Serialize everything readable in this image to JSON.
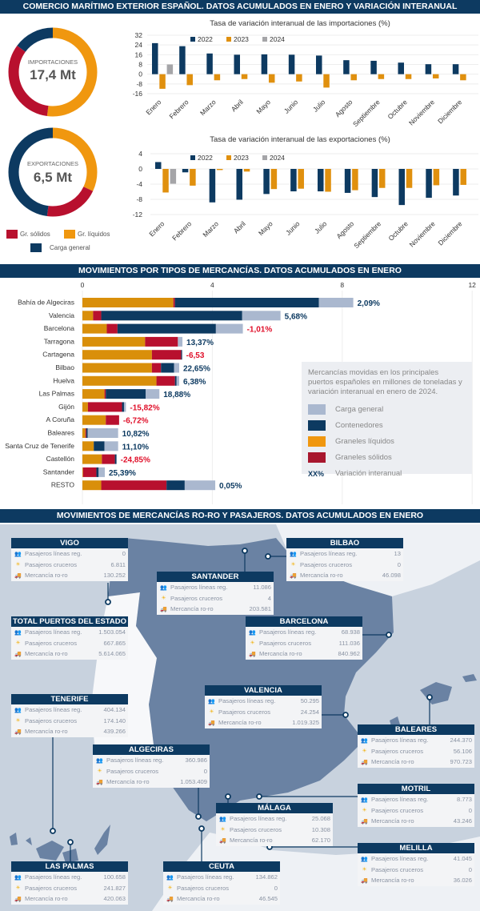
{
  "section1": {
    "title": "COMERCIO MARÍTIMO EXTERIOR ESPAÑOL. DATOS ACUMULADOS EN ENERO Y VARIACIÓN INTERANUAL"
  },
  "donuts": {
    "import": {
      "label": "IMPORTACIONES",
      "value": "17,4 Mt",
      "shares": {
        "liquidos": 52,
        "solidos": 33,
        "general": 15
      }
    },
    "export": {
      "label": "EXPORTACIONES",
      "value": "6,5 Mt",
      "shares": {
        "liquidos": 32,
        "solidos": 20,
        "general": 48
      }
    },
    "legend": {
      "solidos": "Gr. sólidos",
      "liquidos": "Gr. líquidos",
      "general": "Carga general"
    },
    "colors": {
      "solidos": "#b8102e",
      "liquidos": "#f0970f",
      "general": "#0d3a61"
    }
  },
  "chart_data": [
    {
      "type": "bar",
      "title": "Tasa de variación interanual de las importaciones (%)",
      "ylim": [
        -16,
        32
      ],
      "yticks": [
        32,
        24,
        16,
        8,
        0,
        -8,
        -16
      ],
      "grid": true,
      "legend": "top",
      "categories": [
        "Enero",
        "Febrero",
        "Marzo",
        "Abril",
        "Mayo",
        "Junio",
        "Julio",
        "Agosto",
        "Septiembre",
        "Octubre",
        "Noviembre",
        "Diciembre"
      ],
      "series": [
        {
          "name": "2022",
          "color": "#0d3a61",
          "values": [
            25.5,
            23,
            17,
            16,
            16.3,
            16,
            15.3,
            11.5,
            11,
            9.5,
            8.2,
            8.2
          ]
        },
        {
          "name": "2023",
          "color": "#e0900e",
          "values": [
            -12,
            -9,
            -5,
            -4,
            -7,
            -6,
            -11,
            -5,
            -4,
            -4,
            -3.5,
            -5
          ]
        },
        {
          "name": "2024",
          "color": "#a5a5a8",
          "values": [
            8,
            null,
            null,
            null,
            null,
            null,
            null,
            null,
            null,
            null,
            null,
            null
          ]
        }
      ]
    },
    {
      "type": "bar",
      "title": "Tasa de variación interanual de las exportaciones (%)",
      "ylim": [
        -12,
        4
      ],
      "yticks": [
        4,
        0,
        -4,
        -8,
        -12
      ],
      "grid": true,
      "legend": "top",
      "categories": [
        "Enero",
        "Febrero",
        "Marzo",
        "Abril",
        "Mayo",
        "Junio",
        "Julio",
        "Agosto",
        "Septiembre",
        "Octubre",
        "Noviembre",
        "Diciembre"
      ],
      "series": [
        {
          "name": "2022",
          "color": "#0d3a61",
          "values": [
            1.8,
            -0.9,
            -8.8,
            -8.1,
            -6.6,
            -5.9,
            -5.9,
            -6.3,
            -7.4,
            -9.5,
            -7.6,
            -7
          ]
        },
        {
          "name": "2023",
          "color": "#e0900e",
          "values": [
            -6.2,
            -4.4,
            -0.3,
            -0.7,
            -5.3,
            -5.2,
            -6,
            -5.6,
            -5,
            -5,
            -4.3,
            -4.2
          ]
        },
        {
          "name": "2024",
          "color": "#a5a5a8",
          "values": [
            -3.9,
            null,
            null,
            null,
            null,
            null,
            null,
            null,
            null,
            null,
            null,
            null
          ]
        }
      ]
    },
    {
      "type": "bar",
      "stacked": true,
      "orientation": "horizontal",
      "title": "MOVIMIENTOS POR TIPOS DE MERCANCÍAS. DATOS ACUMULADOS EN ENERO",
      "xlim": [
        0,
        12
      ],
      "xticks": [
        0,
        4,
        8,
        12
      ],
      "grid": true,
      "categories": [
        "Bahía de Algeciras",
        "Valencia",
        "Barcelona",
        "Tarragona",
        "Cartagena",
        "Bilbao",
        "Huelva",
        "Las Palmas",
        "Gijón",
        "A Coruña",
        "Baleares",
        "Santa Cruz de Tenerife",
        "Castellón",
        "Santander",
        "RESTO"
      ],
      "series": [
        {
          "name": "Graneles líquidos",
          "color": "#d98f0a",
          "values": [
            2.8,
            0.33,
            0.75,
            1.93,
            2.14,
            2.14,
            2.28,
            0.68,
            0.17,
            0.72,
            0.09,
            0.35,
            0.6,
            0.02,
            0.58
          ]
        },
        {
          "name": "Graneles sólidos",
          "color": "#b8102e",
          "values": [
            0.05,
            0.25,
            0.33,
            1.01,
            0.9,
            0.28,
            0.57,
            0.04,
            1.05,
            0.41,
            0.03,
            0,
            0.4,
            0.41,
            2.01
          ]
        },
        {
          "name": "Contenedores",
          "color": "#0d3a61",
          "values": [
            4.43,
            4.34,
            3.03,
            0,
            0.03,
            0.4,
            0.05,
            1.23,
            0.06,
            0,
            0.04,
            0.33,
            0.05,
            0.07,
            0.56
          ]
        },
        {
          "name": "Carga general",
          "color": "#aab8cf",
          "values": [
            1.06,
            1.18,
            0.83,
            0.14,
            0,
            0.16,
            0.08,
            0.42,
            0.06,
            0,
            0.94,
            0.42,
            0,
            0.19,
            0.94
          ]
        }
      ],
      "variation": [
        "2,09%",
        "5,68%",
        "-1,01%",
        "13,37%",
        "-6,53",
        "22,65%",
        "6,38%",
        "18,88%",
        "-15,82%",
        "-6,72%",
        "10,82%",
        "11,10%",
        "-24,85%",
        "25,39%",
        "0,05%"
      ],
      "note": "Mercancías movidas en los principales puertos españoles en millones de toneladas y variación interanual en enero de 2024.",
      "legend_items": [
        "Carga general",
        "Contenedores",
        "Graneles líquidos",
        "Graneles sólidos"
      ],
      "legend_xx": "XX%",
      "legend_xx_label": "Variación interanual"
    }
  ],
  "section3": {
    "title": "MOVIMIENTOS DE MERCANCÍAS RO-RO Y PASAJEROS.  DATOS ACUMULADOS EN ENERO"
  },
  "row_labels": [
    "Pasajeros líneas reg.",
    "Pasajeros cruceros",
    "Mercancía ro-ro"
  ],
  "ports": [
    {
      "name": "VIGO",
      "values": [
        "0",
        "6.811",
        "130.252"
      ]
    },
    {
      "name": "SANTANDER",
      "values": [
        "11.086",
        "4",
        "203.581"
      ]
    },
    {
      "name": "BILBAO",
      "values": [
        "13",
        "0",
        "46.098"
      ]
    },
    {
      "name": "TOTAL PUERTOS DEL ESTADO",
      "values": [
        "1.503.054",
        "667.865",
        "5.614.065"
      ]
    },
    {
      "name": "BARCELONA",
      "values": [
        "68.938",
        "111.036",
        "840.962"
      ]
    },
    {
      "name": "TENERIFE",
      "values": [
        "404.134",
        "174.140",
        "439.266"
      ]
    },
    {
      "name": "VALENCIA",
      "values": [
        "50.295",
        "24.254",
        "1.019.325"
      ]
    },
    {
      "name": "ALGECIRAS",
      "values": [
        "360.986",
        "0",
        "1.053.409"
      ]
    },
    {
      "name": "BALEARES",
      "values": [
        "244.370",
        "56.106",
        "970.723"
      ]
    },
    {
      "name": "MOTRIL",
      "values": [
        "8.773",
        "0",
        "43.246"
      ]
    },
    {
      "name": "MÁLAGA",
      "values": [
        "25.068",
        "10.308",
        "62.170"
      ]
    },
    {
      "name": "MELILLA",
      "values": [
        "41.045",
        "0",
        "36.026"
      ]
    },
    {
      "name": "LAS PALMAS",
      "values": [
        "100.658",
        "241.827",
        "420.063"
      ]
    },
    {
      "name": "CEUTA",
      "values": [
        "134.862",
        "0",
        "46.545"
      ]
    }
  ]
}
